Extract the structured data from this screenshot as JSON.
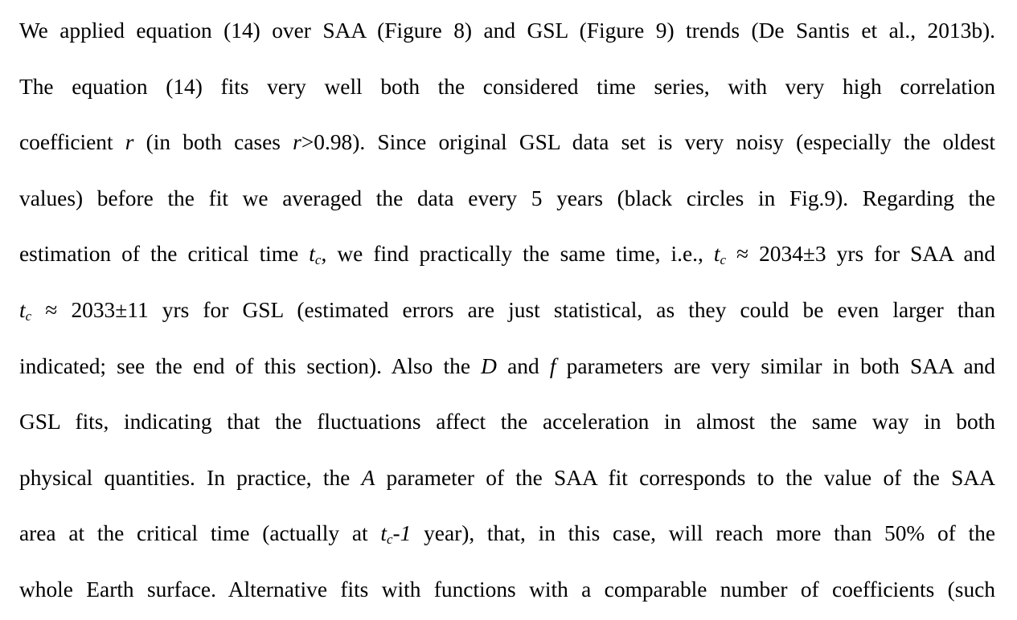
{
  "paragraph": {
    "l1": "We applied equation (14) over SAA (Figure 8) and GSL (Figure 9) trends (De Santis et al., 2013b).",
    "l2": "The equation (14) fits very well both the considered time series, with very high correlation",
    "l3a": "coefficient ",
    "l3r1": "r",
    "l3b": " (in both cases ",
    "l3r2": "r",
    "l3c": ">0.98). Since original GSL data set is very noisy (especially the oldest",
    "l4": "values) before the fit we averaged the data every 5 years (black circles in Fig.9). Regarding the",
    "l5a": "estimation of the critical time ",
    "l5t1": "t",
    "l5s1": "c",
    "l5b": ", we find practically the same time, i.e., ",
    "l5t2": "t",
    "l5s2": "c",
    "l5c": " ≈ 2034±3 yrs for SAA and",
    "l6t": "t",
    "l6s": "c",
    "l6a": " ≈ 2033±11 yrs for GSL (estimated errors are just statistical, as they could be even larger than",
    "l7a": "indicated; see the end of this section). Also the ",
    "l7D": "D",
    "l7b": " and ",
    "l7f": "f",
    "l7c": " parameters are very similar in both SAA and",
    "l8": "GSL fits, indicating that the fluctuations affect the acceleration in almost the same way in both",
    "l9a": "physical quantities. In practice, the ",
    "l9A": "A",
    "l9b": " parameter of the SAA fit corresponds to the value of the SAA",
    "l10a": "area at the critical time (actually at ",
    "l10t": "t",
    "l10s": "c",
    "l10m": "-1",
    "l10b": " year), that, in this case, will reach more than 50% of the",
    "l11": "whole Earth surface. Alternative fits with functions with a comparable number of coefficients (such"
  }
}
